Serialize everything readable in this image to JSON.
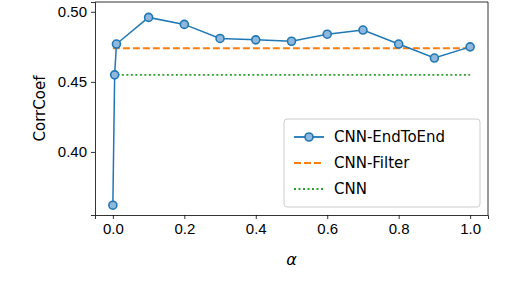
{
  "chart_data": {
    "type": "line",
    "x_label": "α",
    "y_label": "CorrCoef",
    "xlim": [
      -0.05,
      1.05
    ],
    "ylim": [
      0.355,
      0.507
    ],
    "xticks": [
      {
        "value": 0,
        "label": "0.0"
      },
      {
        "value": 0.2,
        "label": "0.2"
      },
      {
        "value": 0.4,
        "label": "0.4"
      },
      {
        "value": 0.6,
        "label": "0.6"
      },
      {
        "value": 0.8,
        "label": "0.8"
      },
      {
        "value": 1,
        "label": "1.0"
      }
    ],
    "yticks": [
      {
        "value": 0.4,
        "label": "0.40"
      },
      {
        "value": 0.45,
        "label": "0.45"
      },
      {
        "value": 0.5,
        "label": "0.50"
      }
    ],
    "grid": false,
    "legend": "lower right",
    "series": [
      {
        "name": "CNN-EndToEnd",
        "color": "#1f77b4",
        "marker": "circle",
        "line_style": "solid",
        "x": [
          0,
          0.005,
          0.01,
          0.1,
          0.2,
          0.3,
          0.4,
          0.5,
          0.6,
          0.7,
          0.8,
          0.9,
          1.0
        ],
        "values": [
          0.362,
          0.455,
          0.477,
          0.496,
          0.491,
          0.481,
          0.48,
          0.479,
          0.484,
          0.487,
          0.477,
          0.467,
          0.475
        ]
      },
      {
        "name": "CNN-Filter",
        "color": "#ff7f0e",
        "marker": "none",
        "line_style": "dashed",
        "x": [
          0,
          1.0
        ],
        "values": [
          0.474,
          0.474
        ]
      },
      {
        "name": "CNN",
        "color": "#2ca02c",
        "marker": "none",
        "line_style": "dotted",
        "x": [
          0,
          1.0
        ],
        "values": [
          0.455,
          0.455
        ]
      }
    ]
  }
}
